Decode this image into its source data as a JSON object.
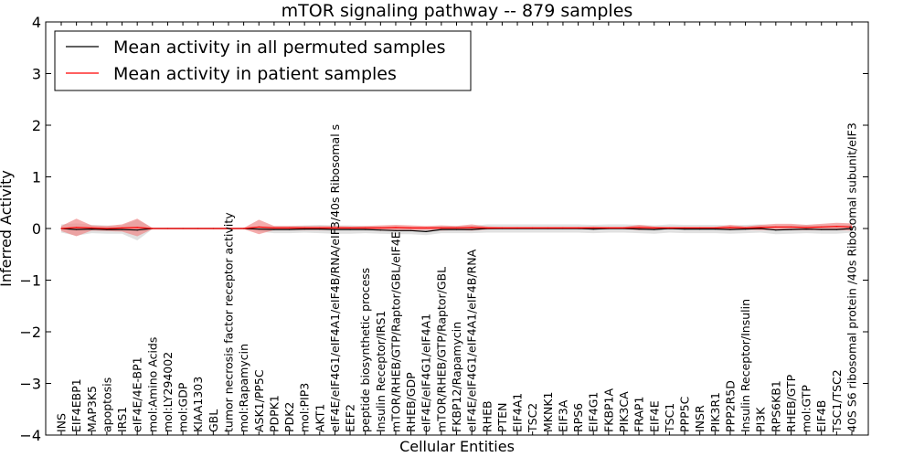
{
  "chart_data": {
    "type": "line",
    "title": "mTOR signaling pathway -- 879 samples",
    "xlabel": "Cellular Entities",
    "ylabel": "Inferred Activity",
    "ylim": [
      -4,
      4
    ],
    "yticks": [
      -4,
      -3,
      -2,
      -1,
      0,
      1,
      2,
      3,
      4
    ],
    "legend_position": "top-left",
    "categories": [
      "INS",
      "EIF4EBP1",
      "MAP3K5",
      "apoptosis",
      "IRS1",
      "eIF4E/4E-BP1",
      "mol:Amino Acids",
      "mol:LY294002",
      "mol:GDP",
      "KIAA1303",
      "GBL",
      "tumor necrosis factor receptor activity",
      "mol:Rapamycin",
      "ASK1/PP5C",
      "PDPK1",
      "PDK2",
      "mol:PIP3",
      "AKT1",
      "eIF4E/eIF4G1/eIF4A1/eIF4B/RNA/eIF3/40s Ribosomal s",
      "EEF2",
      "peptide biosynthetic process",
      "Insulin Receptor/IRS1",
      "mTOR/RHEB/GTP/Raptor/GBL/eIF4E",
      "RHEB/GDP",
      "eIF4E/eIF4G1/eIF4A1",
      "mTOR/RHEB/GTP/Raptor/GBL",
      "FKBP12/Rapamycin",
      "eIF4E/eIF4G1/eIF4A1/eIF4B/RNA",
      "RHEB",
      "PTEN",
      "EIF4A1",
      "TSC2",
      "MKNK1",
      "EIF3A",
      "RPS6",
      "EIF4G1",
      "FKBP1A",
      "PIK3CA",
      "FRAP1",
      "EIF4E",
      "TSC1",
      "PPP5C",
      "INSR",
      "PIK3R1",
      "PPP2R5D",
      "Insulin Receptor/Insulin",
      "PI3K",
      "RPS6KB1",
      "RHEB/GTP",
      "mol:GTP",
      "EIF4B",
      "TSC1/TSC2",
      "40S S6 ribosomal protein /40s Ribosomal subunit/eIF3"
    ],
    "series": [
      {
        "name": "Mean activity in all permuted samples",
        "color": "#000000",
        "values": [
          0,
          -0.02,
          -0.01,
          -0.02,
          -0.02,
          -0.03,
          0,
          0,
          0,
          0,
          0,
          0,
          0,
          -0.01,
          -0.02,
          -0.02,
          -0.01,
          -0.01,
          -0.02,
          -0.02,
          -0.02,
          -0.03,
          -0.04,
          -0.04,
          -0.06,
          -0.02,
          -0.02,
          -0.02,
          0,
          0,
          0,
          0,
          0,
          0,
          0,
          -0.01,
          0,
          0,
          -0.01,
          -0.02,
          0,
          -0.01,
          -0.01,
          -0.01,
          -0.02,
          -0.01,
          0,
          -0.03,
          -0.02,
          -0.01,
          -0.02,
          -0.02,
          0
        ],
        "band": [
          0.08,
          0.12,
          0.08,
          0.08,
          0.08,
          0.2,
          0.01,
          0.01,
          0.01,
          0.01,
          0.01,
          0.01,
          0.01,
          0.05,
          0.07,
          0.07,
          0.07,
          0.08,
          0.08,
          0.08,
          0.07,
          0.07,
          0.07,
          0.07,
          0.07,
          0.07,
          0.07,
          0.07,
          0.08,
          0.08,
          0.08,
          0.08,
          0.08,
          0.08,
          0.08,
          0.08,
          0.08,
          0.08,
          0.08,
          0.08,
          0.08,
          0.08,
          0.08,
          0.08,
          0.08,
          0.08,
          0.08,
          0.08,
          0.08,
          0.08,
          0.08,
          0.08,
          0.08
        ]
      },
      {
        "name": "Mean activity in patient samples",
        "color": "#ff0000",
        "values": [
          0,
          0.02,
          0.01,
          0,
          0.01,
          0.02,
          0,
          0,
          0,
          0,
          0,
          0,
          0,
          0.03,
          0.01,
          0.01,
          0.01,
          0.01,
          0.01,
          0.01,
          0.01,
          0.01,
          0.02,
          0.01,
          0.01,
          0.01,
          0.01,
          0.02,
          0.01,
          0.01,
          0.01,
          0.01,
          0.01,
          0.01,
          0.01,
          0.01,
          0.01,
          0.01,
          0.02,
          0.01,
          0.01,
          0.01,
          0.01,
          0.01,
          0.02,
          0.01,
          0.02,
          0.03,
          0.03,
          0.02,
          0.03,
          0.04,
          0.03
        ],
        "band": [
          0.05,
          0.17,
          0.05,
          0.05,
          0.07,
          0.17,
          0.01,
          0.01,
          0.01,
          0.01,
          0.01,
          0.01,
          0.01,
          0.14,
          0.04,
          0.04,
          0.04,
          0.04,
          0.04,
          0.03,
          0.04,
          0.05,
          0.05,
          0.05,
          0.04,
          0.05,
          0.04,
          0.06,
          0.03,
          0.02,
          0.02,
          0.02,
          0.02,
          0.02,
          0.02,
          0.03,
          0.02,
          0.02,
          0.05,
          0.03,
          0.02,
          0.02,
          0.02,
          0.02,
          0.05,
          0.03,
          0.05,
          0.06,
          0.06,
          0.05,
          0.06,
          0.07,
          0.07
        ]
      }
    ]
  }
}
